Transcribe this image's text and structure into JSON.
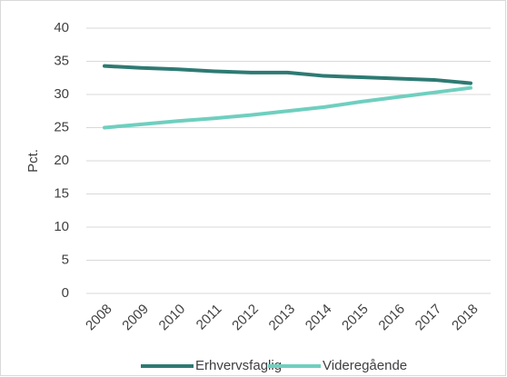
{
  "chart_data": {
    "type": "line",
    "y_label": "Pct.",
    "categories": [
      "2008",
      "2009",
      "2010",
      "2011",
      "2012",
      "2013",
      "2014",
      "2015",
      "2016",
      "2017",
      "2018"
    ],
    "series": [
      {
        "name": "Erhvervsfaglig",
        "color": "#2e7a73",
        "values": [
          34.3,
          34.0,
          33.8,
          33.5,
          33.3,
          33.3,
          32.8,
          32.6,
          32.4,
          32.2,
          31.7
        ]
      },
      {
        "name": "Videregående",
        "color": "#6fcfbf",
        "values": [
          25.0,
          25.5,
          26.0,
          26.4,
          26.9,
          27.5,
          28.1,
          28.9,
          29.6,
          30.3,
          31.0
        ]
      }
    ],
    "ylim": [
      0,
      40
    ],
    "yticks": [
      0,
      5,
      10,
      15,
      20,
      25,
      30,
      35,
      40
    ],
    "grid": true,
    "legend": "bottom"
  }
}
